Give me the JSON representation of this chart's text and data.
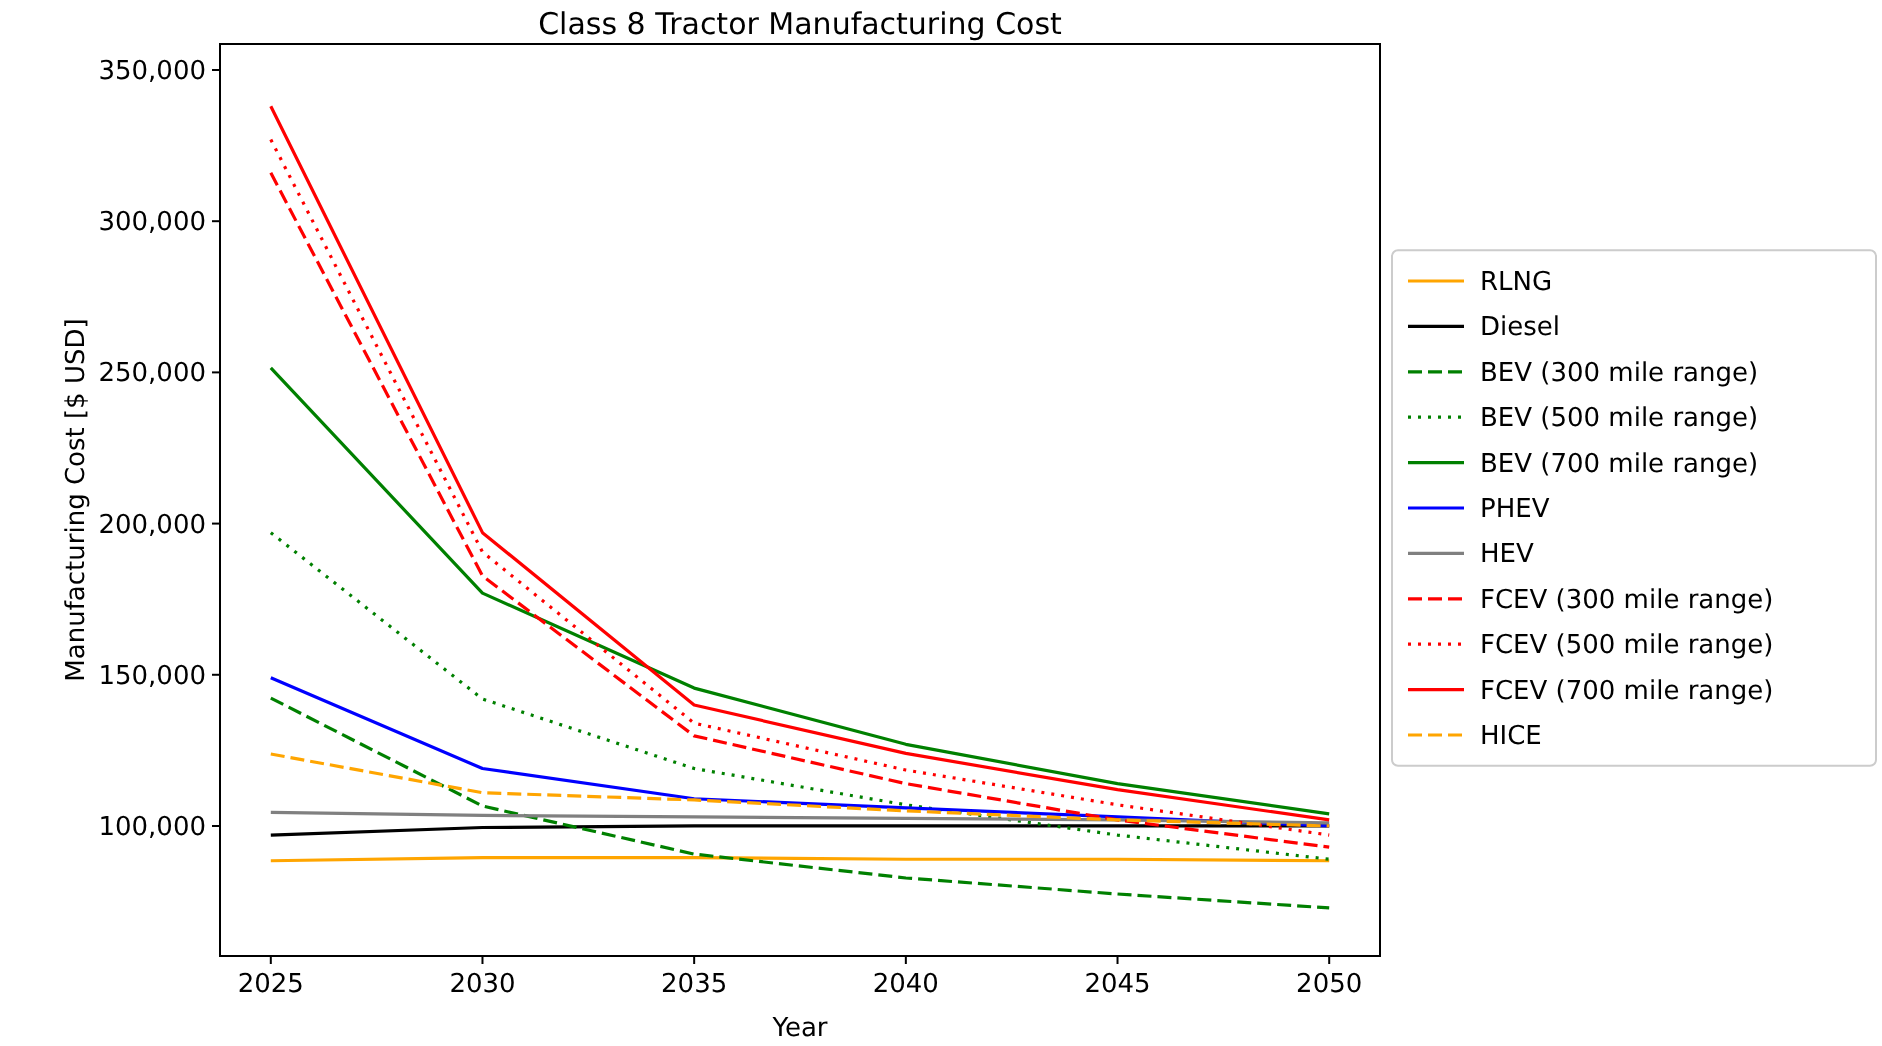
{
  "chart_data": {
    "type": "line",
    "title": "Class 8 Tractor Manufacturing Cost",
    "xlabel": "Year",
    "ylabel": "Manufacturing Cost [$ USD]",
    "x": [
      2025,
      2030,
      2035,
      2040,
      2045,
      2050
    ],
    "xlim": [
      2023.8,
      2051.2
    ],
    "xticks": [
      2025,
      2030,
      2035,
      2040,
      2045,
      2050
    ],
    "ylim": [
      57000,
      358600
    ],
    "yticks": [
      {
        "value": 100000,
        "label": "100,000"
      },
      {
        "value": 150000,
        "label": "150,000"
      },
      {
        "value": 200000,
        "label": "200,000"
      },
      {
        "value": 250000,
        "label": "250,000"
      },
      {
        "value": 300000,
        "label": "300,000"
      },
      {
        "value": 350000,
        "label": "350,000"
      }
    ],
    "grid": false,
    "legend": "right",
    "marker": "none",
    "series": [
      {
        "name": "RLNG",
        "color": "#ffa500",
        "line_style": "solid",
        "values": [
          88500,
          89500,
          89500,
          89000,
          89000,
          88500
        ]
      },
      {
        "name": "Diesel",
        "color": "#000000",
        "line_style": "solid",
        "values": [
          97000,
          99500,
          100000,
          100000,
          100000,
          100000
        ]
      },
      {
        "name": "BEV (300 mile range)",
        "color": "#008000",
        "line_style": "dashed",
        "values": [
          142300,
          106600,
          90700,
          82800,
          77500,
          72900
        ]
      },
      {
        "name": "BEV (500 mile range)",
        "color": "#008000",
        "line_style": "dotted",
        "values": [
          197000,
          142000,
          119000,
          107000,
          97000,
          89000
        ]
      },
      {
        "name": "BEV (700 mile range)",
        "color": "#008000",
        "line_style": "solid",
        "values": [
          251500,
          177000,
          145600,
          127000,
          114000,
          104000
        ]
      },
      {
        "name": "PHEV",
        "color": "#0000ff",
        "line_style": "solid",
        "values": [
          149000,
          119000,
          109000,
          106000,
          103000,
          100000
        ]
      },
      {
        "name": "HEV",
        "color": "#808080",
        "line_style": "solid",
        "values": [
          104500,
          103500,
          103000,
          102500,
          102000,
          101000
        ]
      },
      {
        "name": "FCEV (300 mile range)",
        "color": "#ff0000",
        "line_style": "dashed",
        "values": [
          316000,
          182700,
          129800,
          114000,
          102000,
          93000
        ]
      },
      {
        "name": "FCEV (500 mile range)",
        "color": "#ff0000",
        "line_style": "dotted",
        "values": [
          327000,
          190600,
          134000,
          118500,
          107000,
          97000
        ]
      },
      {
        "name": "FCEV (700 mile range)",
        "color": "#ff0000",
        "line_style": "solid",
        "values": [
          338000,
          197000,
          140000,
          124000,
          112000,
          102000
        ]
      },
      {
        "name": "HICE",
        "color": "#ffa500",
        "line_style": "dashed",
        "values": [
          123800,
          111000,
          108600,
          105000,
          102000,
          100000
        ]
      }
    ]
  }
}
